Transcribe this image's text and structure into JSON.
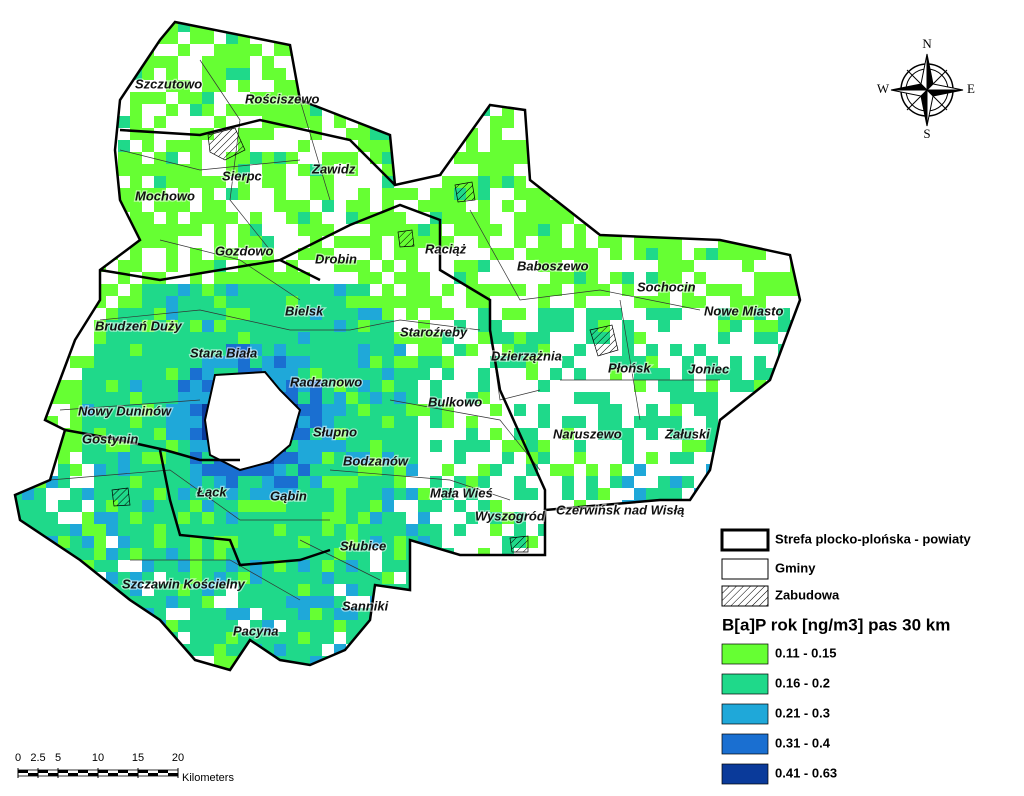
{
  "map": {
    "places": [
      "Szczutowo",
      "Rościszewo",
      "Mochowo",
      "Sierpc",
      "Zawidz",
      "Gozdowo",
      "Drobin",
      "Raciąż",
      "Baboszewo",
      "Sochocin",
      "Nowe Miasto",
      "Brudzeń Duży",
      "Bielsk",
      "Staroźreby",
      "Stara Biała",
      "Radzanowo",
      "Dzierzążnia",
      "Płońsk",
      "Joniec",
      "Nowy Duninów",
      "Bulkowo",
      "Słupno",
      "Naruszewo",
      "Załuski",
      "Gostynin",
      "Bodzanów",
      "Łąck",
      "Gąbin",
      "Mała Wieś",
      "Wyszogród",
      "Czerwińsk nad Wisłą",
      "Słubice",
      "Szczawin Kościelny",
      "Sanniki",
      "Pacyna"
    ],
    "compass": {
      "north": "N",
      "east": "E",
      "south": "S",
      "west": "W"
    },
    "legend": {
      "boundaries": [
        "Strefa plocko-plońska - powiaty",
        "Gminy",
        "Zabudowa"
      ],
      "title": "B[a]P rok [ng/m3] pas 30 km",
      "classes": [
        {
          "label": "0.11 - 0.15",
          "color": "#66ff33"
        },
        {
          "label": "0.16 - 0.2",
          "color": "#1fd98a"
        },
        {
          "label": "0.21 - 0.3",
          "color": "#1fa8d9"
        },
        {
          "label": "0.31 - 0.4",
          "color": "#1a6fd1"
        },
        {
          "label": "0.41 - 0.63",
          "color": "#0a3a9a"
        }
      ]
    },
    "scale": {
      "ticks": [
        0,
        2.5,
        5,
        10,
        15,
        20
      ],
      "unit": "Kilometers"
    }
  }
}
